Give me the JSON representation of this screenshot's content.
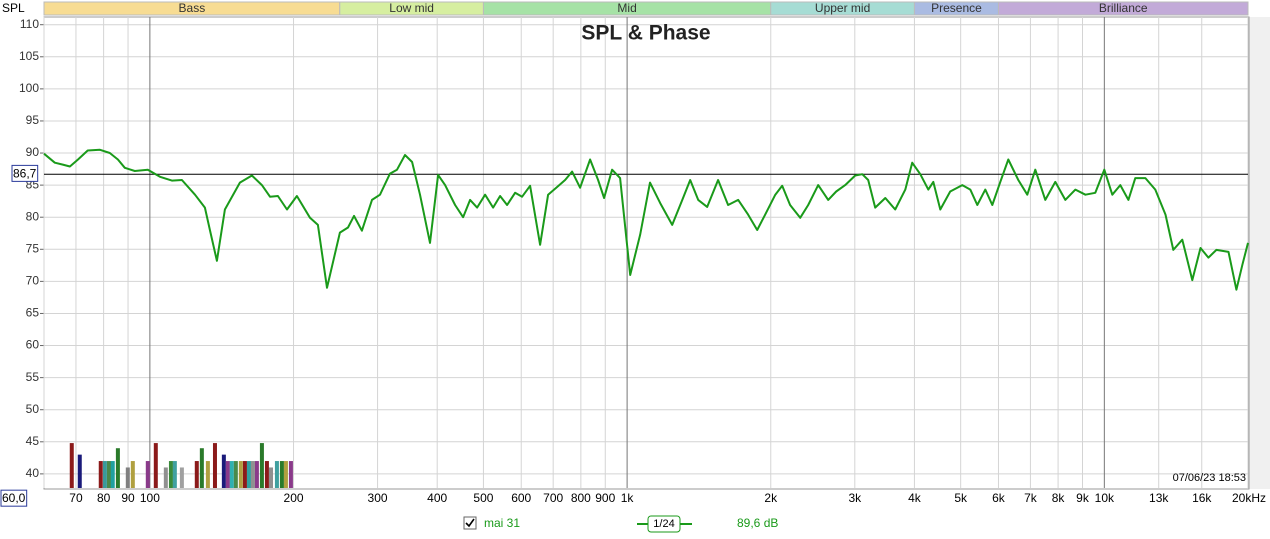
{
  "chart_data": {
    "type": "line",
    "title": "SPL & Phase",
    "y_label": "SPL",
    "timestamp": "07/06/23 18:53",
    "log_x": true,
    "grid": true,
    "xlim": [
      60,
      20000
    ],
    "ylim": [
      37.8,
      111.2
    ],
    "xticks": [
      {
        "value": 60,
        "label": "60,0"
      },
      70,
      80,
      90,
      100,
      200,
      300,
      400,
      500,
      600,
      700,
      800,
      900,
      {
        "value": 1000,
        "label": "1k"
      },
      {
        "value": 2000,
        "label": "2k"
      },
      {
        "value": 3000,
        "label": "3k"
      },
      {
        "value": 4000,
        "label": "4k"
      },
      {
        "value": 5000,
        "label": "5k"
      },
      {
        "value": 6000,
        "label": "6k"
      },
      {
        "value": 7000,
        "label": "7k"
      },
      {
        "value": 8000,
        "label": "8k"
      },
      {
        "value": 9000,
        "label": "9k"
      },
      {
        "value": 10000,
        "label": "10k"
      },
      {
        "value": 13000,
        "label": "13k"
      },
      {
        "value": 16000,
        "label": "16k"
      },
      {
        "value": 20000,
        "label": "20kHz"
      }
    ],
    "yticks": [
      40,
      45,
      50,
      55,
      60,
      65,
      70,
      75,
      80,
      85,
      90,
      95,
      100,
      105,
      110
    ],
    "reference": {
      "value": 86.7,
      "label": "86,7"
    },
    "bands": [
      {
        "name": "Bass",
        "from": 60,
        "to": 250,
        "color": "#f7dc93"
      },
      {
        "name": "Low mid",
        "from": 250,
        "to": 500,
        "color": "#d6eea0"
      },
      {
        "name": "Mid",
        "from": 500,
        "to": 2000,
        "color": "#a6e2a6"
      },
      {
        "name": "Upper mid",
        "from": 2000,
        "to": 4000,
        "color": "#a6dcd4"
      },
      {
        "name": "Presence",
        "from": 4000,
        "to": 6000,
        "color": "#aabbe2"
      },
      {
        "name": "Brilliance",
        "from": 6000,
        "to": 20000,
        "color": "#c2aad8"
      }
    ],
    "x": [
      60,
      63.2,
      65.7,
      68,
      70.7,
      74.1,
      78.6,
      82.4,
      85.7,
      88.6,
      93,
      99,
      105,
      111.2,
      116.7,
      124.3,
      130.4,
      133.6,
      138.2,
      143.6,
      154.4,
      163.6,
      171.7,
      178.5,
      185.5,
      193.8,
      203.3,
      216.5,
      225,
      235,
      250.2,
      260.1,
      267.7,
      278.2,
      292,
      303.5,
      318.5,
      329.5,
      342.5,
      354.3,
      368.1,
      386.4,
      401.7,
      415.5,
      436,
      453.2,
      468.8,
      484.9,
      503.9,
      523.8,
      541.8,
      560.4,
      582.4,
      602.4,
      626.1,
      657.1,
      682.9,
      713.2,
      741.3,
      767,
      797,
      836.5,
      869.6,
      895,
      930.2,
      966.7,
      1015,
      1065,
      1117,
      1173,
      1243,
      1305,
      1356,
      1409,
      1472,
      1551,
      1628,
      1709,
      1793,
      1873,
      1947,
      2044,
      2113,
      2196,
      2305,
      2396,
      2514,
      2639,
      2743,
      2864,
      3006,
      3110,
      3201,
      3311,
      3475,
      3646,
      3827,
      3958,
      4114,
      4276,
      4381,
      4532,
      4754,
      5039,
      5237,
      5418,
      5630,
      5824,
      6053,
      6291,
      6603,
      6896,
      7168,
      7521,
      7894,
      8285,
      8696,
      9126,
      9575,
      10000,
      10390,
      10800,
      11230,
      11610,
      12190,
      12790,
      13430,
      13950,
      14570,
      15290,
      15900,
      16520,
      17170,
      18200,
      18910,
      19470,
      20000
    ],
    "series": [
      {
        "name": "mai 31",
        "color": "#1a9a1a",
        "smoothing": "1/24",
        "level": "89,6 dB",
        "values": [
          89.9,
          88.5,
          88.2,
          87.9,
          89,
          90.4,
          90.5,
          90,
          89,
          87.7,
          87.2,
          87.4,
          86.3,
          85.7,
          85.8,
          83.5,
          81.5,
          78,
          73.2,
          81.2,
          85.4,
          86.5,
          85,
          83.2,
          83.3,
          81.2,
          83.3,
          79.9,
          78.8,
          69,
          77.6,
          78.4,
          80.2,
          77.9,
          82.7,
          83.5,
          86.8,
          87.4,
          89.7,
          88.6,
          83.5,
          76,
          86.6,
          85,
          81.9,
          80,
          82.7,
          81.5,
          83.5,
          81.5,
          83.3,
          81.9,
          83.8,
          83.2,
          84.9,
          75.7,
          83.5,
          84.7,
          85.8,
          87.1,
          84.6,
          89,
          85.8,
          83,
          87.4,
          86.1,
          71,
          77.3,
          85.4,
          82.2,
          78.8,
          82.7,
          85.8,
          82.7,
          81.6,
          85.8,
          81.9,
          82.7,
          80.4,
          78,
          80.4,
          83.5,
          84.9,
          81.9,
          79.9,
          81.9,
          85,
          82.7,
          84,
          85,
          86.5,
          86.7,
          85.8,
          81.5,
          83,
          81.2,
          84.3,
          88.5,
          86.7,
          84.3,
          85.5,
          81.2,
          84,
          85,
          84.3,
          81.9,
          84.3,
          81.9,
          85.5,
          89,
          85.8,
          83.5,
          87.4,
          82.7,
          85.5,
          82.7,
          84.3,
          83.5,
          83.8,
          87.4,
          83.5,
          85,
          82.7,
          86.1,
          86.1,
          84.3,
          80.4,
          74.9,
          76.5,
          70.2,
          75.2,
          73.7,
          74.9,
          74.6,
          68.7,
          72.6,
          76
        ]
      }
    ],
    "filters": [
      {
        "x": 68.6,
        "value": 44.8,
        "color": "#8b1a1a"
      },
      {
        "x": 71.3,
        "value": 43,
        "color": "#1a1a7a"
      },
      {
        "x": 78.9,
        "value": 42,
        "color": "#8b1a1a"
      },
      {
        "x": 80.5,
        "value": 42,
        "color": "#3a9a9a"
      },
      {
        "x": 82.1,
        "value": 42,
        "color": "#4a8a4a"
      },
      {
        "x": 83.6,
        "value": 42,
        "color": "#20a0a0"
      },
      {
        "x": 85.7,
        "value": 44,
        "color": "#2a7a2a"
      },
      {
        "x": 89.9,
        "value": 41,
        "color": "#808080"
      },
      {
        "x": 92.1,
        "value": 42,
        "color": "#b0a040"
      },
      {
        "x": 99,
        "value": 42,
        "color": "#8a3a8a"
      },
      {
        "x": 102.9,
        "value": 44.8,
        "color": "#8b1a1a"
      },
      {
        "x": 108,
        "value": 41,
        "color": "#909090"
      },
      {
        "x": 110.7,
        "value": 42,
        "color": "#3a8a3a"
      },
      {
        "x": 112.8,
        "value": 42,
        "color": "#40a0a0"
      },
      {
        "x": 116.7,
        "value": 41,
        "color": "#a0a0a0"
      },
      {
        "x": 125.4,
        "value": 42,
        "color": "#8b1a1a"
      },
      {
        "x": 128.5,
        "value": 44,
        "color": "#2a7a2a"
      },
      {
        "x": 132.3,
        "value": 42,
        "color": "#b0a040"
      },
      {
        "x": 136.9,
        "value": 44.8,
        "color": "#8b1a1a"
      },
      {
        "x": 142.9,
        "value": 43,
        "color": "#1a1a7a"
      },
      {
        "x": 145.7,
        "value": 42,
        "color": "#8a3a8a"
      },
      {
        "x": 148.5,
        "value": 42,
        "color": "#30b0b0"
      },
      {
        "x": 151.4,
        "value": 42,
        "color": "#4a8a4a"
      },
      {
        "x": 155.1,
        "value": 42,
        "color": "#b0a040"
      },
      {
        "x": 158.2,
        "value": 42,
        "color": "#8b1a1a"
      },
      {
        "x": 161.3,
        "value": 42,
        "color": "#30a0a0"
      },
      {
        "x": 164.4,
        "value": 42,
        "color": "#909090"
      },
      {
        "x": 167.6,
        "value": 42,
        "color": "#8a3a8a"
      },
      {
        "x": 171.7,
        "value": 44.8,
        "color": "#2a7a2a"
      },
      {
        "x": 175.9,
        "value": 42,
        "color": "#8b1a1a"
      },
      {
        "x": 179.4,
        "value": 41,
        "color": "#909090"
      },
      {
        "x": 184.6,
        "value": 42,
        "color": "#40a0a0"
      },
      {
        "x": 189.1,
        "value": 42,
        "color": "#2a7a2a"
      },
      {
        "x": 192.8,
        "value": 42,
        "color": "#b0a040"
      },
      {
        "x": 197.5,
        "value": 42,
        "color": "#8a3a8a"
      }
    ]
  }
}
